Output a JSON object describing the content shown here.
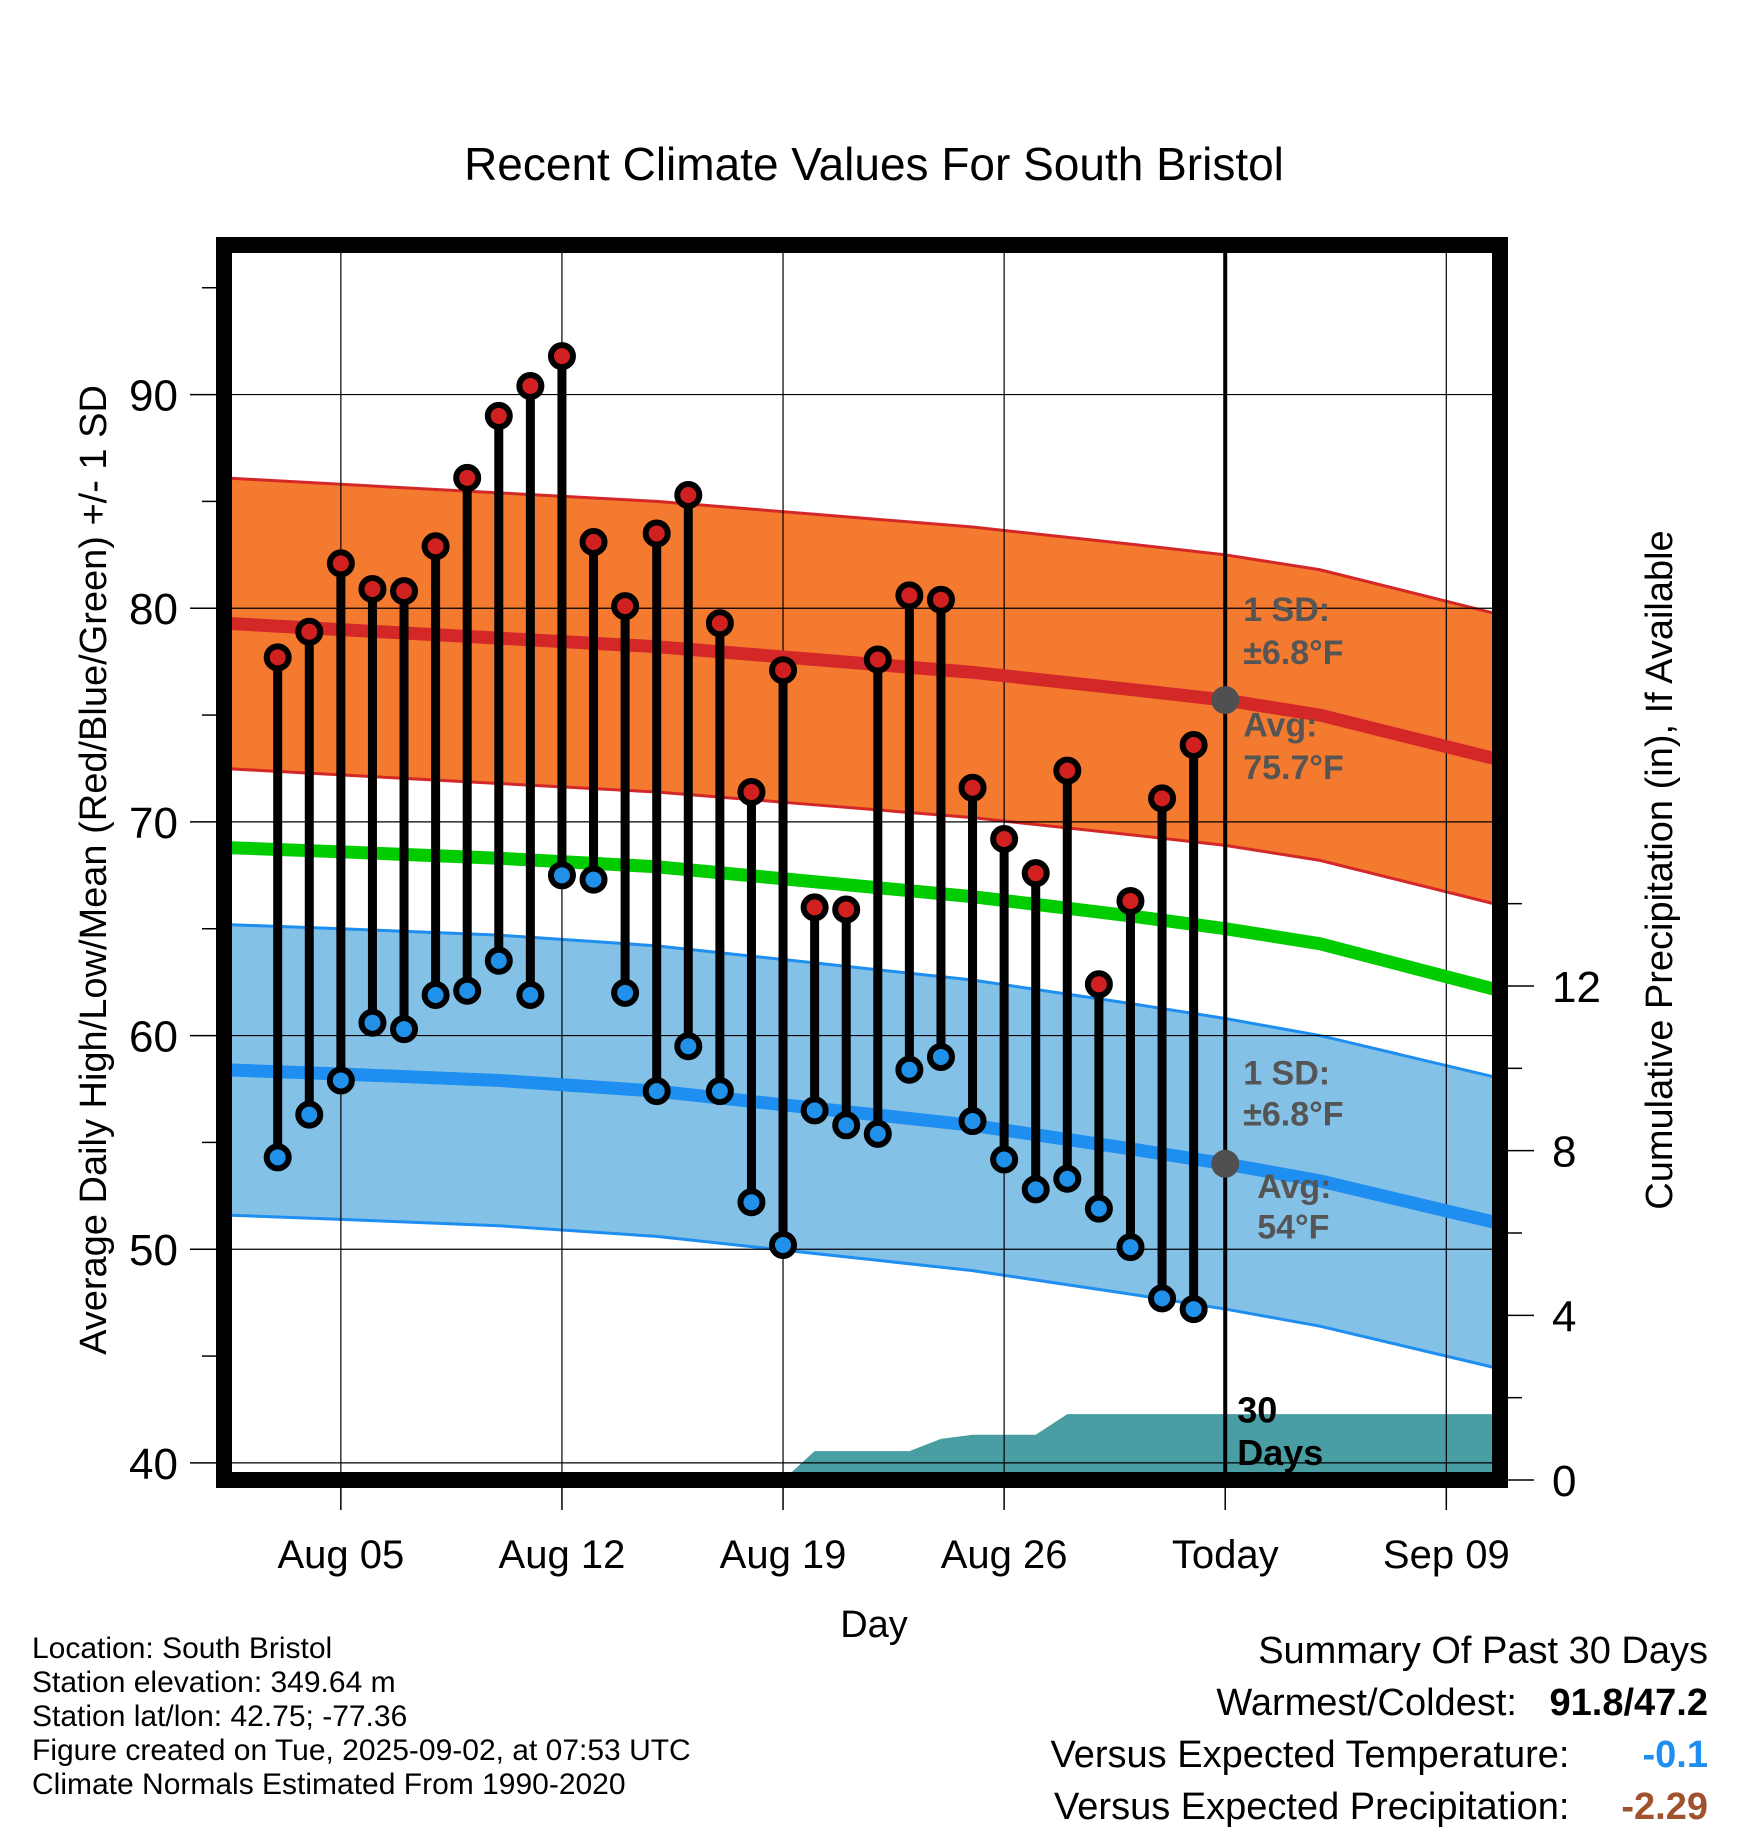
{
  "chart_data": {
    "type": "line",
    "title": "Recent Climate Values For South Bristol",
    "xlabel": "Day",
    "ylabel": "Average Daily High/Low/Mean (Red/Blue/Green) +/- 1 SD",
    "y2label": "Cumulative Precipitation (in), If Available",
    "ylim": [
      39.2,
      97.0
    ],
    "y2lim": [
      0,
      30
    ],
    "y_ticks": [
      40,
      50,
      60,
      70,
      80,
      90
    ],
    "y2_ticks": [
      0,
      4,
      8,
      12
    ],
    "x_ticks": [
      {
        "day": 5,
        "label": "Aug 05"
      },
      {
        "day": 12,
        "label": "Aug 12"
      },
      {
        "day": 19,
        "label": "Aug 19"
      },
      {
        "day": 26,
        "label": "Aug 26"
      },
      {
        "day": 33,
        "label": "Today"
      },
      {
        "day": 40,
        "label": "Sep 09"
      }
    ],
    "xlim": [
      1.3,
      41.7
    ],
    "today_day": 33,
    "daily": [
      {
        "day": 3,
        "high": 77.7,
        "low": 54.3
      },
      {
        "day": 4,
        "high": 78.9,
        "low": 56.3
      },
      {
        "day": 5,
        "high": 82.1,
        "low": 57.9
      },
      {
        "day": 6,
        "high": 80.9,
        "low": 60.6
      },
      {
        "day": 7,
        "high": 80.8,
        "low": 60.3
      },
      {
        "day": 8,
        "high": 82.9,
        "low": 61.9
      },
      {
        "day": 9,
        "high": 86.1,
        "low": 62.1
      },
      {
        "day": 10,
        "high": 89.0,
        "low": 63.5
      },
      {
        "day": 11,
        "high": 90.4,
        "low": 61.9
      },
      {
        "day": 12,
        "high": 91.8,
        "low": 67.5
      },
      {
        "day": 13,
        "high": 83.1,
        "low": 67.3
      },
      {
        "day": 14,
        "high": 80.1,
        "low": 62.0
      },
      {
        "day": 15,
        "high": 83.5,
        "low": 57.4
      },
      {
        "day": 16,
        "high": 85.3,
        "low": 59.5
      },
      {
        "day": 17,
        "high": 79.3,
        "low": 57.4
      },
      {
        "day": 18,
        "high": 71.4,
        "low": 52.2
      },
      {
        "day": 19,
        "high": 77.1,
        "low": 50.2
      },
      {
        "day": 20,
        "high": 66.0,
        "low": 56.5
      },
      {
        "day": 21,
        "high": 65.9,
        "low": 55.8
      },
      {
        "day": 22,
        "high": 77.6,
        "low": 55.4
      },
      {
        "day": 23,
        "high": 80.6,
        "low": 58.4
      },
      {
        "day": 24,
        "high": 80.4,
        "low": 59.0
      },
      {
        "day": 25,
        "high": 71.6,
        "low": 56.0
      },
      {
        "day": 26,
        "high": 69.2,
        "low": 54.2
      },
      {
        "day": 27,
        "high": 67.6,
        "low": 52.8
      },
      {
        "day": 28,
        "high": 72.4,
        "low": 53.3
      },
      {
        "day": 29,
        "high": 62.4,
        "low": 51.9
      },
      {
        "day": 30,
        "high": 66.3,
        "low": 50.1
      },
      {
        "day": 31,
        "high": 71.1,
        "low": 47.7
      },
      {
        "day": 32,
        "high": 73.6,
        "low": 47.2
      }
    ],
    "normals": {
      "days": [
        1.3,
        5,
        10,
        15,
        20,
        25,
        30,
        33,
        36,
        41.7
      ],
      "high_avg": [
        79.3,
        79.0,
        78.6,
        78.2,
        77.6,
        77.0,
        76.2,
        75.7,
        75.0,
        72.9
      ],
      "low_avg": [
        58.4,
        58.2,
        57.9,
        57.4,
        56.6,
        55.8,
        54.7,
        54.0,
        53.2,
        51.2
      ],
      "mean_avg": [
        68.8,
        68.6,
        68.3,
        67.9,
        67.2,
        66.5,
        65.6,
        65.0,
        64.3,
        62.1
      ],
      "sd": 6.8
    },
    "precip": {
      "days": [
        1.3,
        19,
        20,
        21,
        22,
        23,
        24,
        25,
        26,
        27,
        28,
        29,
        30,
        31,
        32,
        33,
        41.7
      ],
      "values": [
        0,
        0,
        0.7,
        0.7,
        0.7,
        0.7,
        1.0,
        1.1,
        1.1,
        1.1,
        1.6,
        1.6,
        1.6,
        1.6,
        1.6,
        1.6,
        1.6
      ]
    },
    "labels": {
      "high_sd": "1 SD:",
      "high_sd_val": "±6.8°F",
      "high_avg": "Avg:",
      "high_avg_val": "75.7°F",
      "low_sd": "1 SD:",
      "low_sd_val": "±6.8°F",
      "low_avg": "Avg:",
      "low_avg_val": "54°F",
      "days_top": "30",
      "days_bottom": "Days"
    },
    "colors": {
      "high_band": "#f47a30",
      "high_line": "#d42828",
      "low_band": "#84c1e6",
      "low_line": "#1e8ef0",
      "mean_line": "#00cc00",
      "precip": "#489ea3",
      "high_dot": "#d02020",
      "low_dot": "#2090e8"
    },
    "grid": true,
    "legend": "none"
  },
  "footer": {
    "location": "Location: South Bristol",
    "elevation": "Station elevation: 349.64 m",
    "latlon": "Station lat/lon: 42.75; -77.36",
    "created": "Figure created on Tue, 2025-09-02, at 07:53 UTC",
    "normals": "Climate Normals Estimated From 1990-2020"
  },
  "summary": {
    "title": "Summary Of Past 30 Days",
    "warm_label": "Warmest/Coldest:",
    "warm_value": "91.8/47.2",
    "temp_label": "Versus Expected Temperature:",
    "temp_value": "-0.1",
    "temp_color": "#1e8ef0",
    "precip_label": "Versus Expected Precipitation:",
    "precip_value": "-2.29",
    "precip_color": "#a0522d"
  }
}
